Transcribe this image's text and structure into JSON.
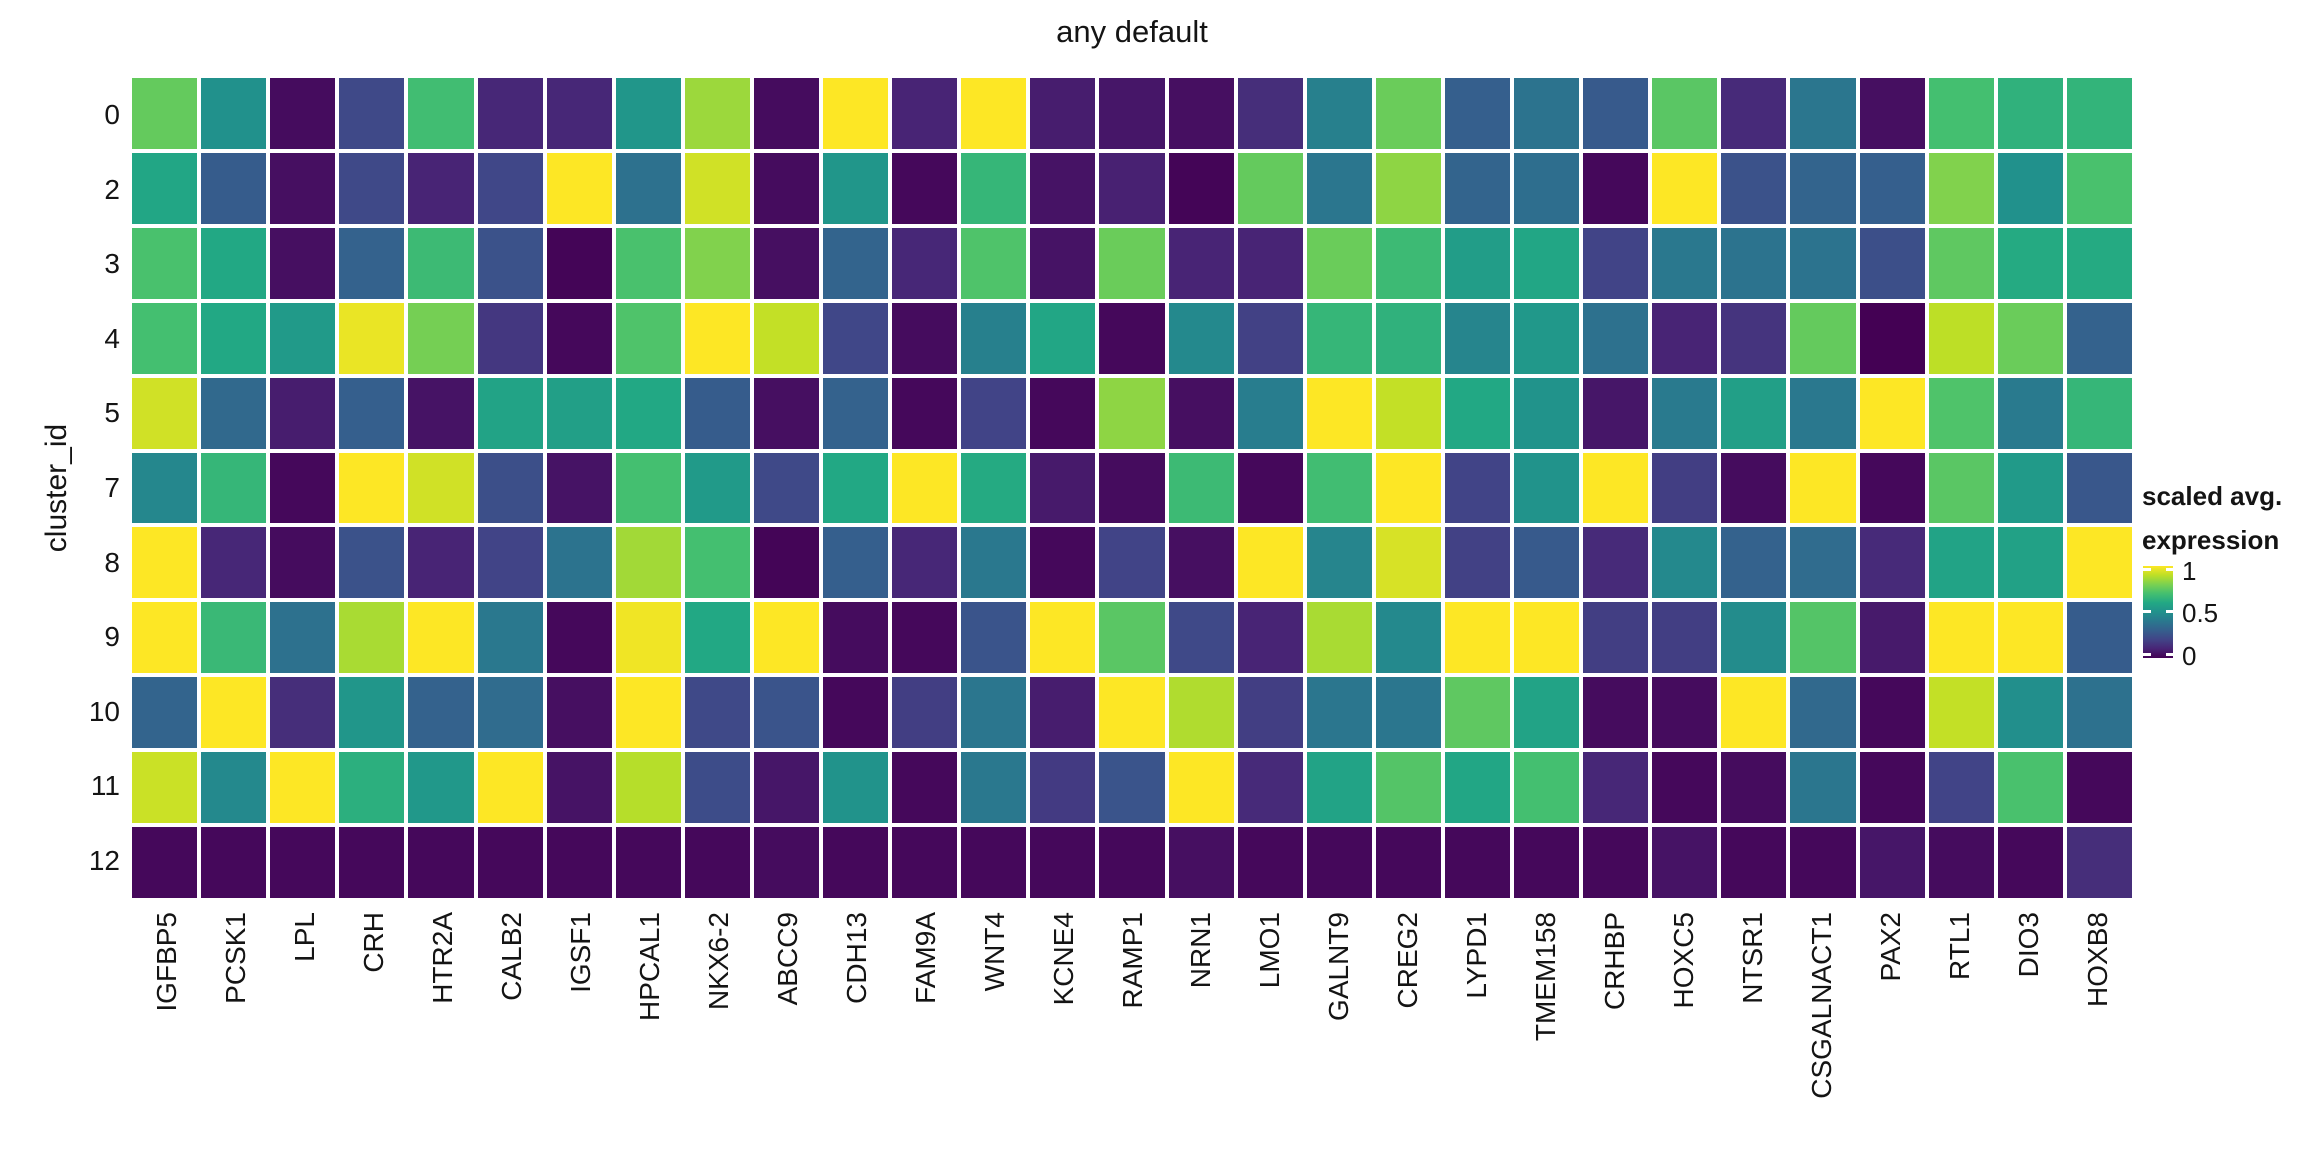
{
  "title": "any default",
  "y_axis": {
    "label": "cluster_id",
    "ticks": [
      "0",
      "2",
      "3",
      "4",
      "5",
      "7",
      "8",
      "9",
      "10",
      "11",
      "12"
    ]
  },
  "x_axis": {
    "ticks": [
      "IGFBP5",
      "PCSK1",
      "LPL",
      "CRH",
      "HTR2A",
      "CALB2",
      "IGSF1",
      "HPCAL1",
      "NKX6-2",
      "ABCC9",
      "CDH13",
      "FAM9A",
      "WNT4",
      "KCNE4",
      "RAMP1",
      "NRN1",
      "LMO1",
      "GALNT9",
      "CREG2",
      "LYPD1",
      "TMEM158",
      "CRHBP",
      "HOXC5",
      "NTSR1",
      "CSGALNACT1",
      "PAX2",
      "RTL1",
      "DIO3",
      "HOXB8"
    ]
  },
  "legend": {
    "title_line1": "scaled avg.",
    "title_line2": "expression",
    "tick_labels": [
      "1",
      "0.5",
      "0"
    ]
  },
  "chart_data": {
    "type": "heatmap",
    "title": "any default",
    "xlabel": "",
    "ylabel": "cluster_id",
    "legend_title": "scaled avg. expression",
    "colormap": "viridis",
    "colormap_stops": [
      "#440154",
      "#482475",
      "#414487",
      "#355f8d",
      "#2a788e",
      "#21918c",
      "#22a884",
      "#44bf70",
      "#7ad151",
      "#bddf26",
      "#fde725"
    ],
    "value_range": [
      0,
      1
    ],
    "legend_ticks": [
      1,
      0.5,
      0
    ],
    "columns": [
      "IGFBP5",
      "PCSK1",
      "LPL",
      "CRH",
      "HTR2A",
      "CALB2",
      "IGSF1",
      "HPCAL1",
      "NKX6-2",
      "ABCC9",
      "CDH13",
      "FAM9A",
      "WNT4",
      "KCNE4",
      "RAMP1",
      "NRN1",
      "LMO1",
      "GALNT9",
      "CREG2",
      "LYPD1",
      "TMEM158",
      "CRHBP",
      "HOXC5",
      "NTSR1",
      "CSGALNACT1",
      "PAX2",
      "RTL1",
      "DIO3",
      "HOXB8"
    ],
    "rows": [
      "0",
      "2",
      "3",
      "4",
      "5",
      "7",
      "8",
      "9",
      "10",
      "11",
      "12"
    ],
    "values": [
      [
        0.76,
        0.5,
        0.03,
        0.22,
        0.69,
        0.11,
        0.11,
        0.52,
        0.85,
        0.03,
        1.0,
        0.1,
        1.0,
        0.08,
        0.06,
        0.04,
        0.13,
        0.43,
        0.77,
        0.3,
        0.38,
        0.28,
        0.74,
        0.12,
        0.39,
        0.04,
        0.7,
        0.64,
        0.65
      ],
      [
        0.59,
        0.29,
        0.04,
        0.22,
        0.1,
        0.21,
        1.0,
        0.37,
        0.93,
        0.03,
        0.52,
        0.02,
        0.66,
        0.05,
        0.09,
        0.01,
        0.76,
        0.39,
        0.83,
        0.32,
        0.36,
        0.02,
        1.0,
        0.25,
        0.32,
        0.3,
        0.81,
        0.5,
        0.71
      ],
      [
        0.71,
        0.6,
        0.04,
        0.31,
        0.68,
        0.25,
        0.01,
        0.71,
        0.81,
        0.04,
        0.32,
        0.11,
        0.72,
        0.05,
        0.77,
        0.1,
        0.1,
        0.77,
        0.68,
        0.55,
        0.59,
        0.2,
        0.4,
        0.38,
        0.38,
        0.24,
        0.75,
        0.61,
        0.61
      ],
      [
        0.7,
        0.6,
        0.54,
        0.97,
        0.79,
        0.16,
        0.02,
        0.72,
        1.0,
        0.91,
        0.21,
        0.03,
        0.43,
        0.59,
        0.02,
        0.47,
        0.19,
        0.66,
        0.64,
        0.45,
        0.53,
        0.37,
        0.1,
        0.15,
        0.76,
        0.0,
        0.9,
        0.77,
        0.31
      ],
      [
        0.93,
        0.34,
        0.08,
        0.3,
        0.05,
        0.58,
        0.56,
        0.6,
        0.29,
        0.04,
        0.31,
        0.02,
        0.2,
        0.02,
        0.83,
        0.04,
        0.42,
        1.0,
        0.91,
        0.6,
        0.51,
        0.06,
        0.41,
        0.56,
        0.4,
        1.0,
        0.72,
        0.41,
        0.66
      ],
      [
        0.46,
        0.66,
        0.02,
        1.0,
        0.93,
        0.24,
        0.05,
        0.7,
        0.54,
        0.22,
        0.6,
        1.0,
        0.61,
        0.07,
        0.03,
        0.68,
        0.02,
        0.69,
        1.0,
        0.2,
        0.51,
        1.0,
        0.18,
        0.03,
        1.0,
        0.02,
        0.74,
        0.54,
        0.27
      ],
      [
        1.0,
        0.11,
        0.03,
        0.25,
        0.1,
        0.2,
        0.38,
        0.86,
        0.7,
        0.01,
        0.3,
        0.11,
        0.4,
        0.02,
        0.2,
        0.04,
        1.0,
        0.45,
        0.94,
        0.19,
        0.28,
        0.12,
        0.47,
        0.31,
        0.35,
        0.12,
        0.58,
        0.57,
        1.0
      ],
      [
        1.0,
        0.67,
        0.37,
        0.87,
        1.0,
        0.4,
        0.02,
        0.98,
        0.6,
        1.0,
        0.03,
        0.02,
        0.26,
        1.0,
        0.74,
        0.22,
        0.1,
        0.87,
        0.47,
        1.0,
        1.0,
        0.18,
        0.18,
        0.48,
        0.73,
        0.07,
        1.0,
        1.0,
        0.29
      ],
      [
        0.32,
        1.0,
        0.13,
        0.52,
        0.31,
        0.35,
        0.04,
        1.0,
        0.22,
        0.26,
        0.02,
        0.18,
        0.39,
        0.08,
        1.0,
        0.88,
        0.18,
        0.39,
        0.39,
        0.75,
        0.58,
        0.03,
        0.03,
        1.0,
        0.34,
        0.02,
        0.91,
        0.49,
        0.37
      ],
      [
        0.92,
        0.47,
        1.0,
        0.63,
        0.53,
        1.0,
        0.05,
        0.89,
        0.23,
        0.06,
        0.51,
        0.02,
        0.4,
        0.17,
        0.26,
        1.0,
        0.12,
        0.58,
        0.73,
        0.59,
        0.7,
        0.11,
        0.02,
        0.03,
        0.39,
        0.02,
        0.2,
        0.71,
        0.02
      ],
      [
        0.02,
        0.02,
        0.02,
        0.02,
        0.02,
        0.02,
        0.02,
        0.02,
        0.02,
        0.03,
        0.02,
        0.02,
        0.02,
        0.02,
        0.02,
        0.04,
        0.02,
        0.02,
        0.02,
        0.02,
        0.02,
        0.02,
        0.05,
        0.02,
        0.02,
        0.06,
        0.03,
        0.02,
        0.13
      ]
    ]
  }
}
